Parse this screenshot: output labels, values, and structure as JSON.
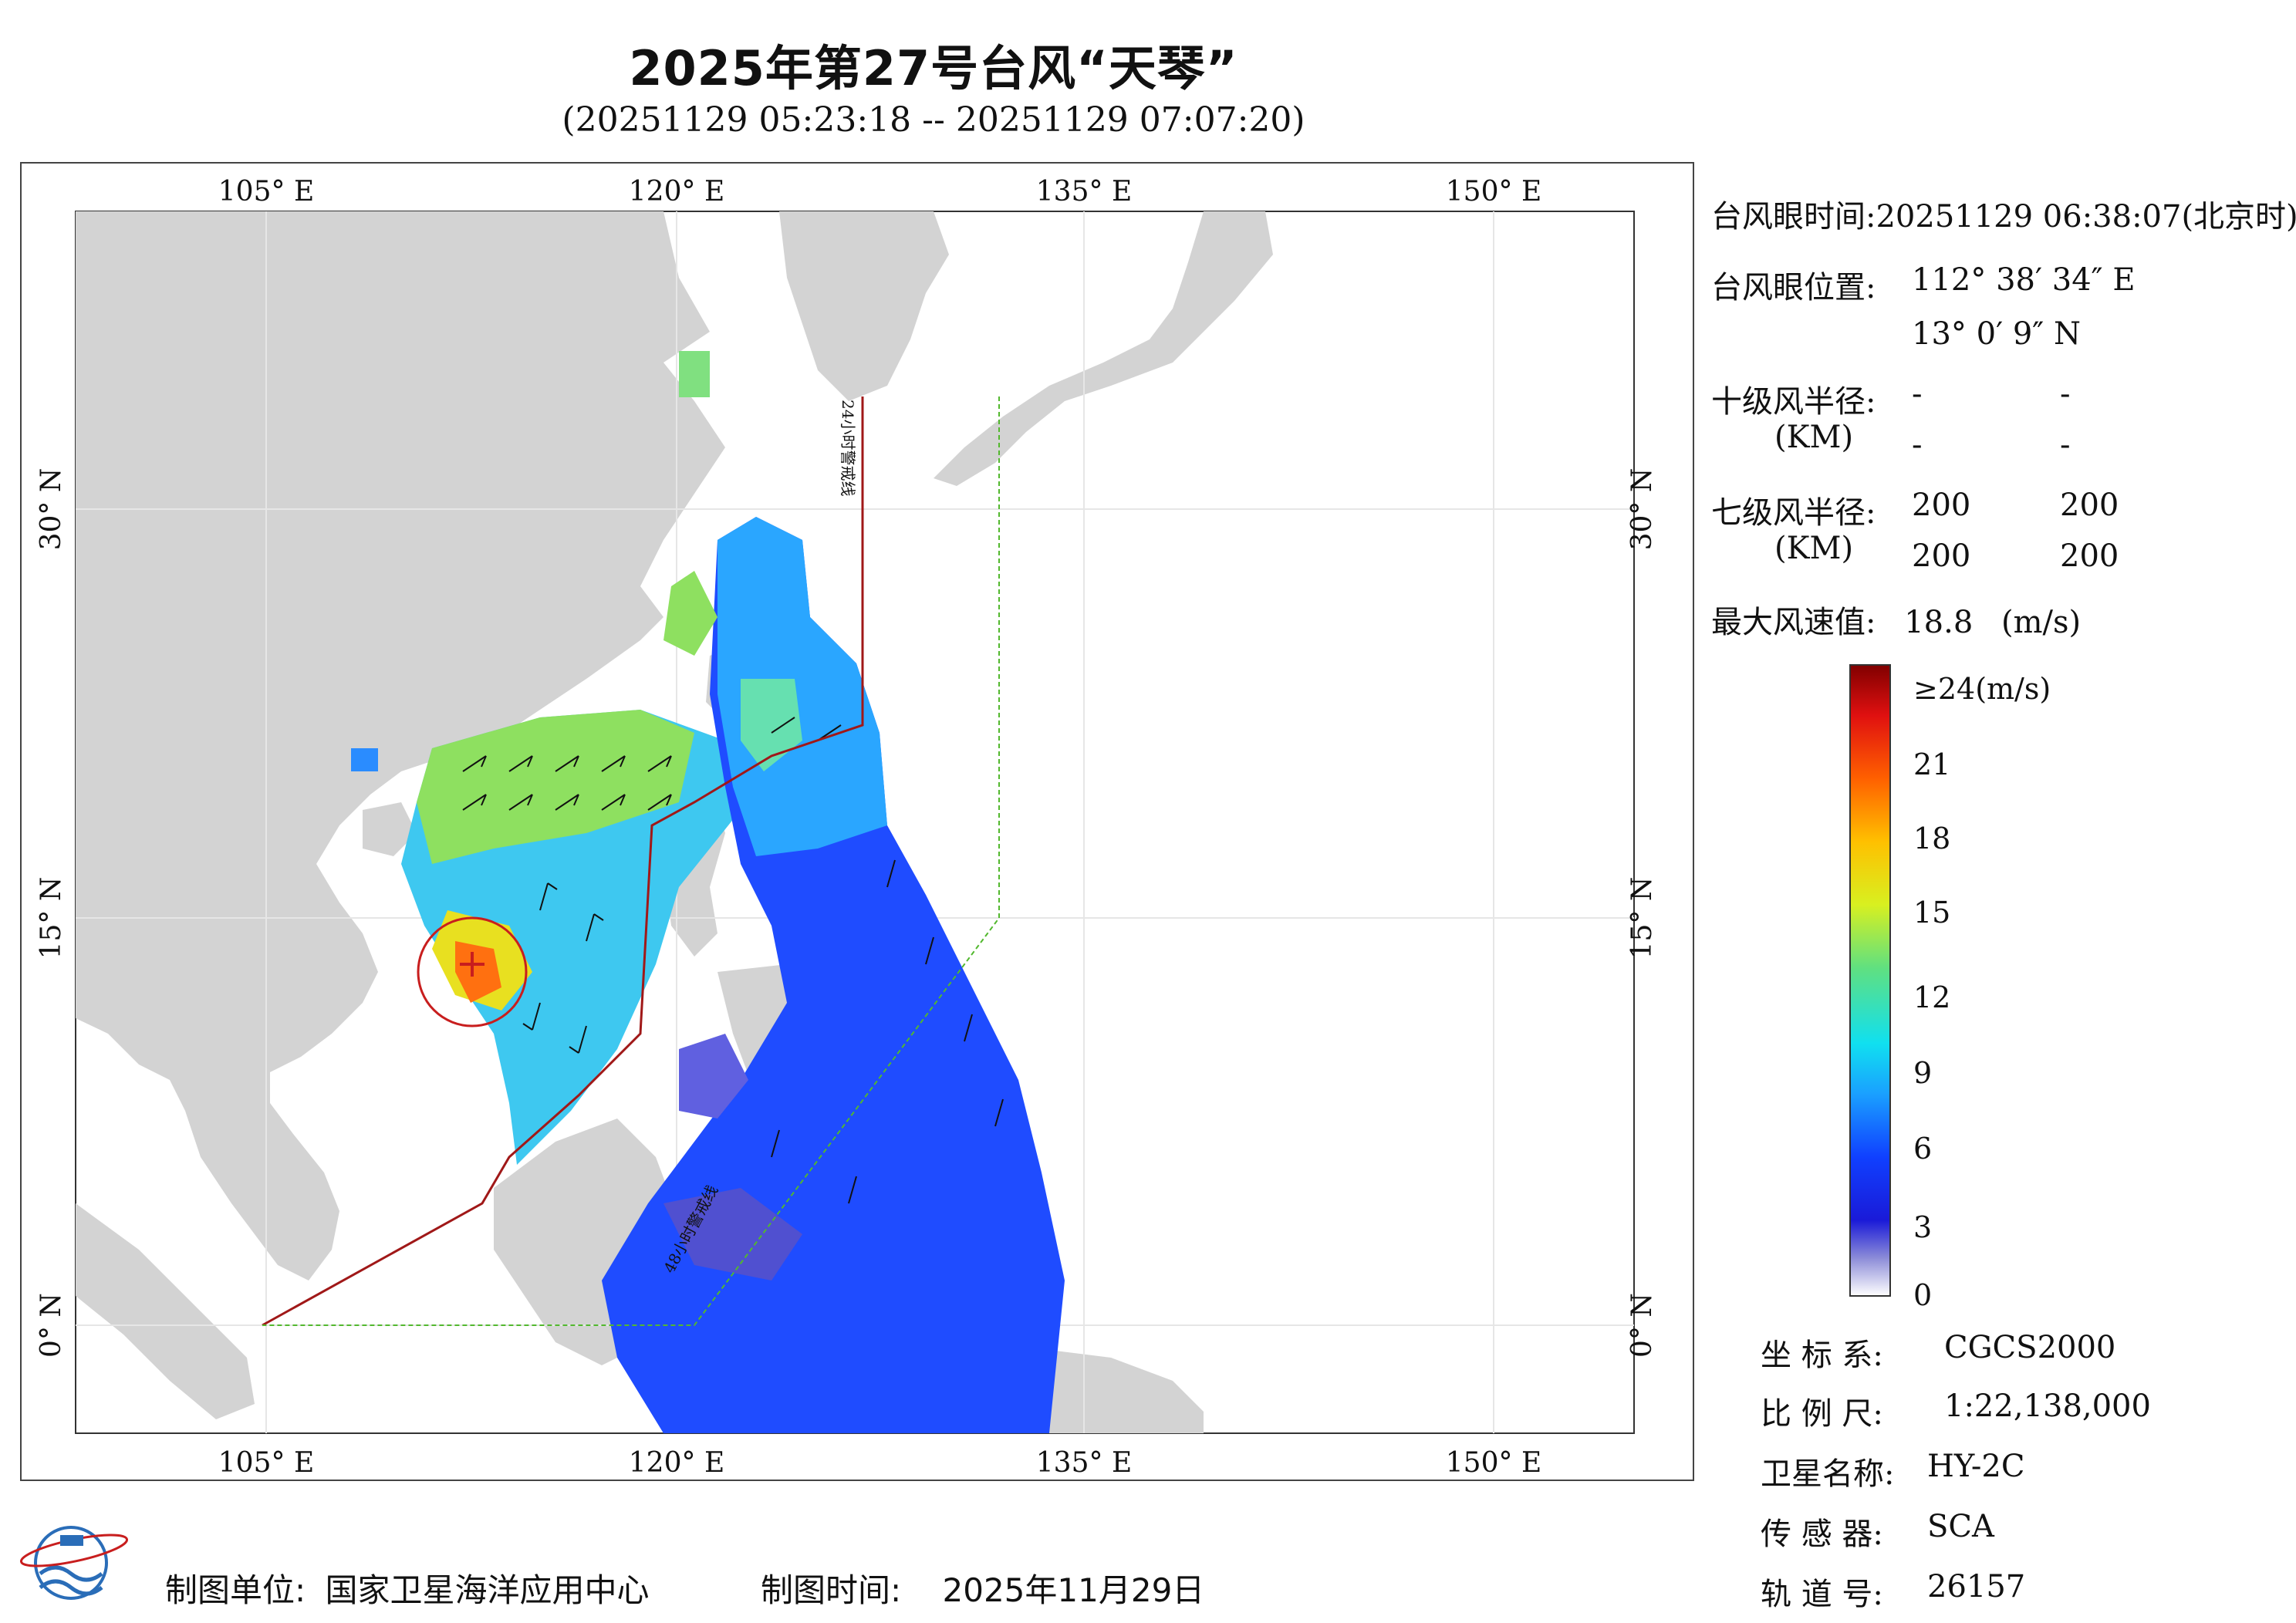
{
  "title": "2025年第27号台风“天琴”",
  "time_range": "(20251129 05:23:18 -- 20251129 07:07:20)",
  "map": {
    "lon_labels": [
      "105° E",
      "120° E",
      "135° E",
      "150° E"
    ],
    "lat_labels": [
      "30° N",
      "15° N",
      "0° N"
    ],
    "warning_line_24h": "24小时警戒线",
    "warning_line_48h": "48小时警戒线"
  },
  "info": {
    "eye_time_label": "台风眼时间:",
    "eye_time_value": "20251129 06:38:07(北京时)",
    "eye_pos_label": "台风眼位置:",
    "eye_lon": "112° 38′ 34″ E",
    "eye_lat": "13° 0′ 9″ N",
    "r10_label": "十级风半径:",
    "r10_unit": "(KM)",
    "r10_values": [
      "-",
      "-",
      "-",
      "-"
    ],
    "r7_label": "七级风半径:",
    "r7_unit": "(KM)",
    "r7_values": [
      "200",
      "200",
      "200",
      "200"
    ],
    "max_wind_label": "最大风速值:",
    "max_wind_value": "18.8",
    "max_wind_unit": "(m/s)"
  },
  "colorbar": {
    "labels": [
      "≥24(m/s)",
      "21",
      "18",
      "15",
      "12",
      "9",
      "6",
      "3",
      "0"
    ],
    "values": [
      24,
      21,
      18,
      15,
      12,
      9,
      6,
      3,
      0
    ]
  },
  "meta": {
    "crs_label": "坐 标 系:",
    "crs_value": "CGCS2000",
    "scale_label": "比 例 尺:",
    "scale_value": "1:22,138,000",
    "sat_label": "卫星名称:",
    "sat_value": "HY-2C",
    "sensor_label": "传 感 器:",
    "sensor_value": "SCA",
    "orbit_label": "轨 道 号:",
    "orbit_value": "26157"
  },
  "footer": {
    "producer_label": "制图单位:",
    "producer_value": "国家卫星海洋应用中心",
    "date_label": "制图时间:",
    "date_value": "2025年11月29日"
  },
  "colors": {
    "land": "#d3d3d3",
    "sea": "#ffffff",
    "warning_line": "#a01818",
    "eez_line": "#52b82e",
    "eye_circle": "#c81e1e"
  }
}
